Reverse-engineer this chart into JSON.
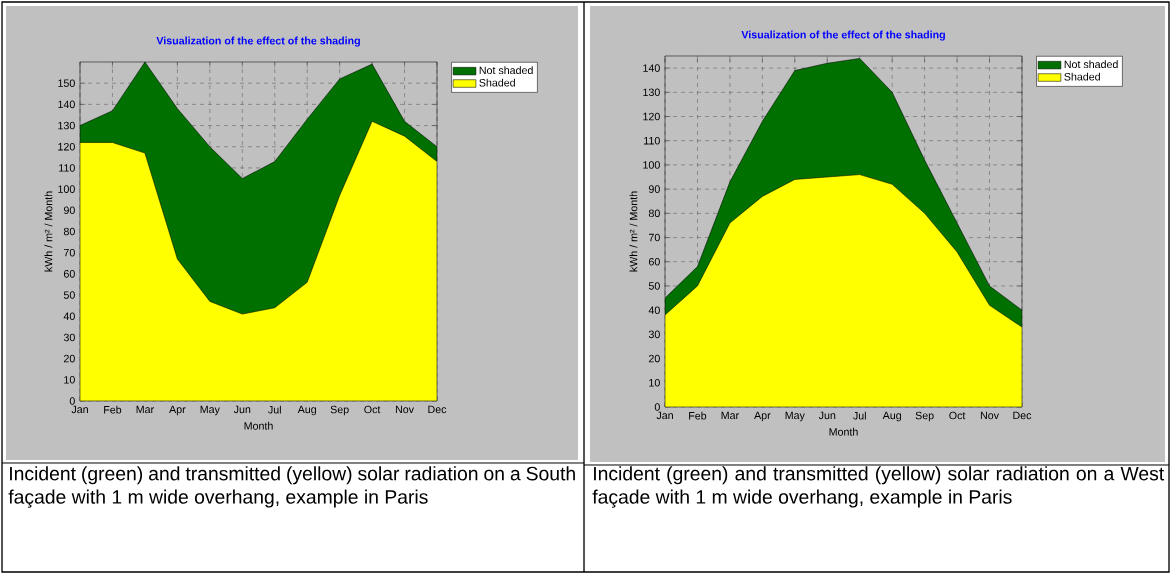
{
  "chart_data": [
    {
      "type": "area",
      "title": "Visualization of the effect of the shading",
      "xlabel": "Month",
      "ylabel": "kWh / m² / Month",
      "categories": [
        "Jan",
        "Feb",
        "Mar",
        "Apr",
        "May",
        "Jun",
        "Jul",
        "Aug",
        "Sep",
        "Oct",
        "Nov",
        "Dec"
      ],
      "series": [
        {
          "name": "Not shaded",
          "color": "#007000",
          "values": [
            130,
            137,
            160,
            138,
            120,
            105,
            113,
            133,
            152,
            159,
            132,
            120
          ]
        },
        {
          "name": "Shaded",
          "color": "#ffff00",
          "values": [
            122,
            122,
            117,
            67,
            47,
            41,
            44,
            56,
            97,
            132,
            125,
            113
          ]
        }
      ],
      "ylim": [
        0,
        160
      ],
      "yticks": [
        0,
        10,
        20,
        30,
        40,
        50,
        60,
        70,
        80,
        90,
        100,
        110,
        120,
        130,
        140,
        150
      ],
      "grid": true,
      "legend": "top right",
      "annotations": [
        "Incident (green) and transmitted (yellow) solar radiation on a South façade with 1 m wide overhang, example in Paris"
      ]
    },
    {
      "type": "area",
      "title": "Visualization of the effect of the shading",
      "xlabel": "Month",
      "ylabel": "kWh / m² / Month",
      "categories": [
        "Jan",
        "Feb",
        "Mar",
        "Apr",
        "May",
        "Jun",
        "Jul",
        "Aug",
        "Sep",
        "Oct",
        "Nov",
        "Dec"
      ],
      "series": [
        {
          "name": "Not shaded",
          "color": "#007000",
          "values": [
            45,
            58,
            93,
            118,
            139,
            142,
            144,
            130,
            102,
            76,
            50,
            40
          ]
        },
        {
          "name": "Shaded",
          "color": "#ffff00",
          "values": [
            38,
            50,
            76,
            87,
            94,
            95,
            96,
            92,
            80,
            64,
            42,
            33
          ]
        }
      ],
      "ylim": [
        0,
        145
      ],
      "yticks": [
        0,
        10,
        20,
        30,
        40,
        50,
        60,
        70,
        80,
        90,
        100,
        110,
        120,
        130,
        140
      ],
      "grid": true,
      "legend": "top right",
      "annotations": [
        "Incident (green) and transmitted (yellow) solar radiation on a West façade with 1 m wide overhang, example in Paris"
      ]
    }
  ]
}
